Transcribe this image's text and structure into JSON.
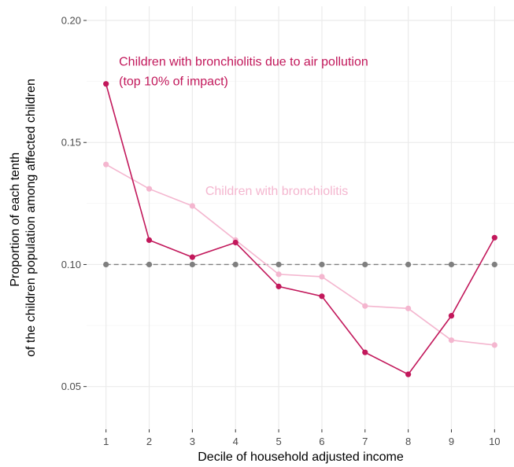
{
  "chart_data": {
    "type": "line",
    "xlabel": "Decile of household adjusted income",
    "ylabel_lines": [
      "Proportion of each tenth",
      "of the children population among affected children"
    ],
    "x": [
      1,
      2,
      3,
      4,
      5,
      6,
      7,
      8,
      9,
      10
    ],
    "xlim": [
      0.55,
      10.45
    ],
    "ylim": [
      0.0325,
      0.2058
    ],
    "x_ticks": [
      "1",
      "2",
      "3",
      "4",
      "5",
      "6",
      "7",
      "8",
      "9",
      "10"
    ],
    "y_ticks": [
      "0.05",
      "0.10",
      "0.15",
      "0.20"
    ],
    "grid": true,
    "series": [
      {
        "values": [
          0.174,
          0.11,
          0.103,
          0.109,
          0.091,
          0.087,
          0.064,
          0.055,
          0.079,
          0.111
        ],
        "color": "#c2185b",
        "style": "solid"
      },
      {
        "values": [
          0.141,
          0.131,
          0.124,
          0.11,
          0.096,
          0.095,
          0.083,
          0.082,
          0.069,
          0.067
        ],
        "color": "#f4b6cf",
        "style": "solid"
      },
      {
        "values": [
          0.1,
          0.1,
          0.1,
          0.1,
          0.1,
          0.1,
          0.1,
          0.1,
          0.1,
          0.1
        ],
        "color": "#7f7f7f",
        "style": "dashed"
      }
    ],
    "annotations": [
      {
        "lines": [
          "Children with bronchiolitis due to air pollution",
          " (top 10% of impact)"
        ],
        "color": "#c2185b",
        "anchor_x": 1.3,
        "anchor_y": 0.1815
      },
      {
        "lines": [
          "Children with bronchiolitis"
        ],
        "color": "#f4b6cf",
        "anchor_x": 3.3,
        "anchor_y": 0.1285
      }
    ]
  }
}
